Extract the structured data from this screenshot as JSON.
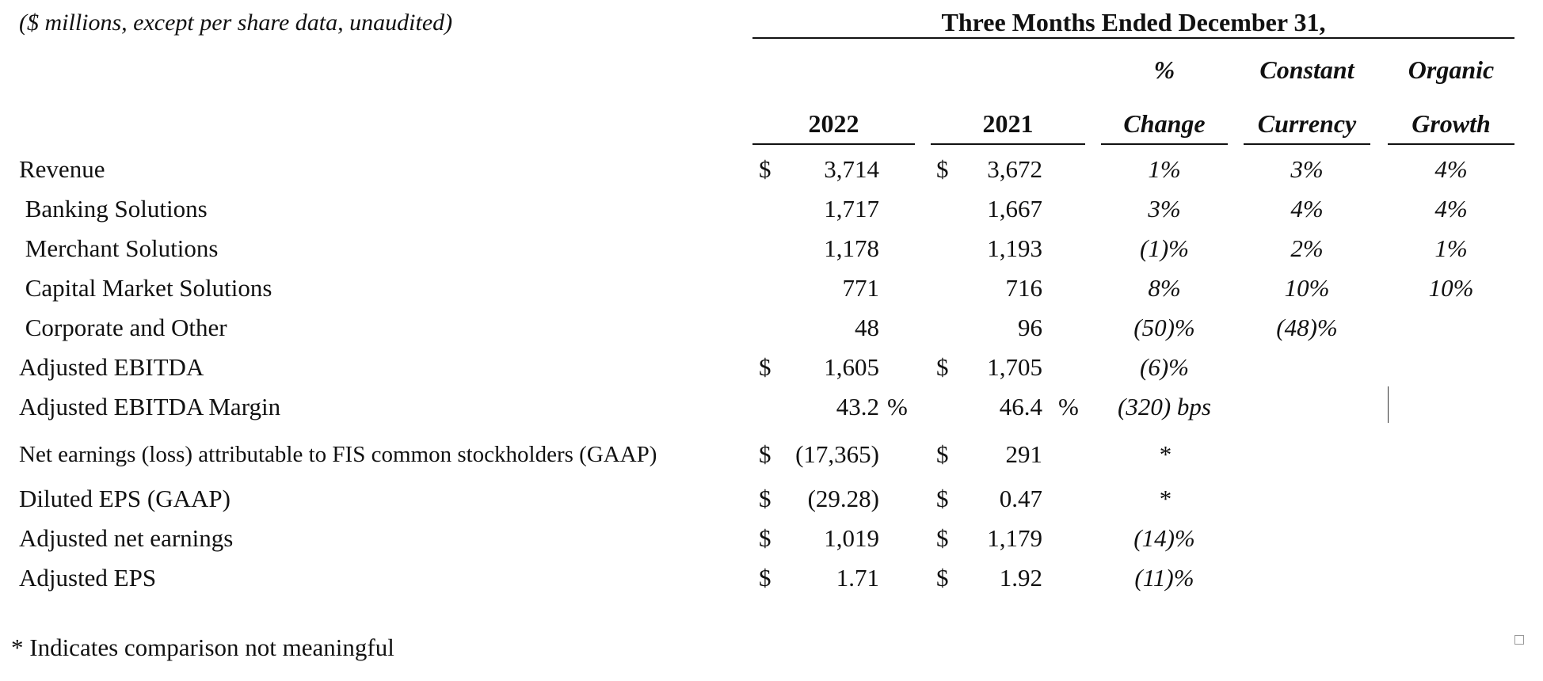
{
  "units_note": "($ millions, except per share data, unaudited)",
  "period_title": "Three Months Ended December 31,",
  "columns": {
    "y2022": "2022",
    "y2021": "2021",
    "change_top": "%",
    "change_bottom": "Change",
    "cc_top": "Constant",
    "cc_bottom": "Currency",
    "og_top": "Organic",
    "og_bottom": "Growth"
  },
  "rows": [
    {
      "label": "Revenue",
      "d22": "$",
      "v22": "3,714",
      "d21": "$",
      "v21": "3,672",
      "change": "1%",
      "cc": "3%",
      "og": "4%"
    },
    {
      "label": " Banking Solutions",
      "d22": "",
      "v22": "1,717",
      "d21": "",
      "v21": "1,667",
      "change": "3%",
      "cc": "4%",
      "og": "4%"
    },
    {
      "label": " Merchant Solutions",
      "d22": "",
      "v22": "1,178",
      "d21": "",
      "v21": "1,193",
      "change": "(1)%",
      "cc": "2%",
      "og": "1%"
    },
    {
      "label": " Capital Market Solutions",
      "d22": "",
      "v22": "771",
      "d21": "",
      "v21": "716",
      "change": "8%",
      "cc": "10%",
      "og": "10%"
    },
    {
      "label": " Corporate and Other",
      "d22": "",
      "v22": "48",
      "d21": "",
      "v21": "96",
      "change": "(50)%",
      "cc": "(48)%",
      "og": ""
    },
    {
      "label": "Adjusted EBITDA",
      "d22": "$",
      "v22": "1,605",
      "d21": "$",
      "v21": "1,705",
      "change": "(6)%",
      "cc": "",
      "og": ""
    },
    {
      "label": "Adjusted EBITDA Margin",
      "d22": "",
      "v22": "43.2",
      "u22": "%",
      "d21": "",
      "v21": "46.4",
      "u21": "%",
      "change": "(320) bps",
      "cc": "",
      "og": ""
    },
    {
      "label": "Net earnings (loss) attributable to FIS common stockholders (GAAP)",
      "d22": "$",
      "v22": "(17,365)",
      "d21": "$",
      "v21": "291",
      "change": "*",
      "cc": "",
      "og": ""
    },
    {
      "label": "Diluted EPS (GAAP)",
      "d22": "$",
      "v22": "(29.28)",
      "d21": "$",
      "v21": "0.47",
      "change": "*",
      "cc": "",
      "og": ""
    },
    {
      "label": "Adjusted net earnings",
      "d22": "$",
      "v22": "1,019",
      "d21": "$",
      "v21": "1,179",
      "change": "(14)%",
      "cc": "",
      "og": ""
    },
    {
      "label": "Adjusted EPS",
      "d22": "$",
      "v22": "1.71",
      "d21": "$",
      "v21": "1.92",
      "change": "(11)%",
      "cc": "",
      "og": ""
    }
  ],
  "footnote": "* Indicates comparison not meaningful"
}
